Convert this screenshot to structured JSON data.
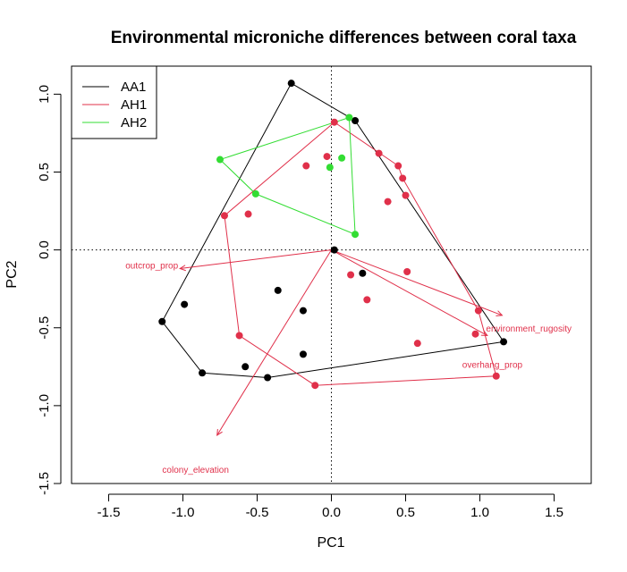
{
  "chart_data": {
    "type": "scatter",
    "title": "Environmental microniche differences between coral taxa",
    "xlabel": "PC1",
    "ylabel": "PC2",
    "xlim": [
      -1.75,
      1.75
    ],
    "ylim": [
      -1.5,
      1.18
    ],
    "x_ticks": [
      "-1.5",
      "-1.0",
      "-0.5",
      "0.0",
      "0.5",
      "1.0",
      "1.5"
    ],
    "y_ticks": [
      "-1.5",
      "-1.0",
      "-0.5",
      "0.0",
      "0.5",
      "1.0"
    ],
    "grid": false,
    "reference_lines": "dotted lines at x = 0 and y = 0",
    "legend": {
      "position": "top-left",
      "entries": [
        {
          "name": "AA1",
          "color": "#000000"
        },
        {
          "name": "AH1",
          "color": "#e0304a"
        },
        {
          "name": "AH2",
          "color": "#33dd33"
        }
      ]
    },
    "series": [
      {
        "name": "AA1",
        "color": "#000000",
        "points": [
          [
            -0.27,
            1.07
          ],
          [
            0.16,
            0.83
          ],
          [
            0.02,
            0.0
          ],
          [
            0.21,
            -0.15
          ],
          [
            -0.36,
            -0.26
          ],
          [
            -0.99,
            -0.35
          ],
          [
            -0.19,
            -0.39
          ],
          [
            -1.14,
            -0.46
          ],
          [
            -0.19,
            -0.67
          ],
          [
            -0.58,
            -0.75
          ],
          [
            -0.87,
            -0.79
          ],
          [
            -0.43,
            -0.82
          ],
          [
            1.16,
            -0.59
          ]
        ],
        "hull": [
          [
            -0.27,
            1.07
          ],
          [
            0.16,
            0.83
          ],
          [
            1.16,
            -0.59
          ],
          [
            -0.43,
            -0.82
          ],
          [
            -0.87,
            -0.79
          ],
          [
            -1.14,
            -0.46
          ]
        ]
      },
      {
        "name": "AH1",
        "color": "#e0304a",
        "points": [
          [
            0.02,
            0.82
          ],
          [
            -0.03,
            0.6
          ],
          [
            -0.17,
            0.54
          ],
          [
            0.32,
            0.62
          ],
          [
            0.45,
            0.54
          ],
          [
            0.48,
            0.46
          ],
          [
            0.5,
            0.35
          ],
          [
            0.38,
            0.31
          ],
          [
            -0.56,
            0.23
          ],
          [
            -0.72,
            0.22
          ],
          [
            0.51,
            -0.14
          ],
          [
            0.13,
            -0.16
          ],
          [
            0.24,
            -0.32
          ],
          [
            0.99,
            -0.39
          ],
          [
            -0.62,
            -0.55
          ],
          [
            0.97,
            -0.54
          ],
          [
            0.58,
            -0.6
          ],
          [
            -0.11,
            -0.87
          ],
          [
            1.11,
            -0.81
          ]
        ],
        "hull": [
          [
            0.02,
            0.82
          ],
          [
            0.45,
            0.54
          ],
          [
            0.48,
            0.46
          ],
          [
            0.99,
            -0.39
          ],
          [
            1.11,
            -0.81
          ],
          [
            -0.11,
            -0.87
          ],
          [
            -0.62,
            -0.55
          ],
          [
            -0.72,
            0.22
          ]
        ]
      },
      {
        "name": "AH2",
        "color": "#33dd33",
        "points": [
          [
            0.12,
            0.85
          ],
          [
            0.07,
            0.59
          ],
          [
            -0.01,
            0.53
          ],
          [
            -0.75,
            0.58
          ],
          [
            -0.51,
            0.36
          ],
          [
            0.16,
            0.1
          ]
        ],
        "hull": [
          [
            0.12,
            0.85
          ],
          [
            0.16,
            0.1
          ],
          [
            -0.51,
            0.36
          ],
          [
            -0.75,
            0.58
          ]
        ]
      }
    ],
    "vectors": [
      {
        "label": "outcrop_prop",
        "x": -1.02,
        "y": -0.12,
        "color": "#e0304a"
      },
      {
        "label": "environment_rugosity",
        "x": 1.15,
        "y": -0.42,
        "color": "#e0304a"
      },
      {
        "label": "overhang_prop",
        "x": 1.05,
        "y": -0.55,
        "color": "#e0304a"
      },
      {
        "label": "colony_elevation",
        "x": -0.77,
        "y": -1.19,
        "color": "#e0304a"
      }
    ]
  }
}
